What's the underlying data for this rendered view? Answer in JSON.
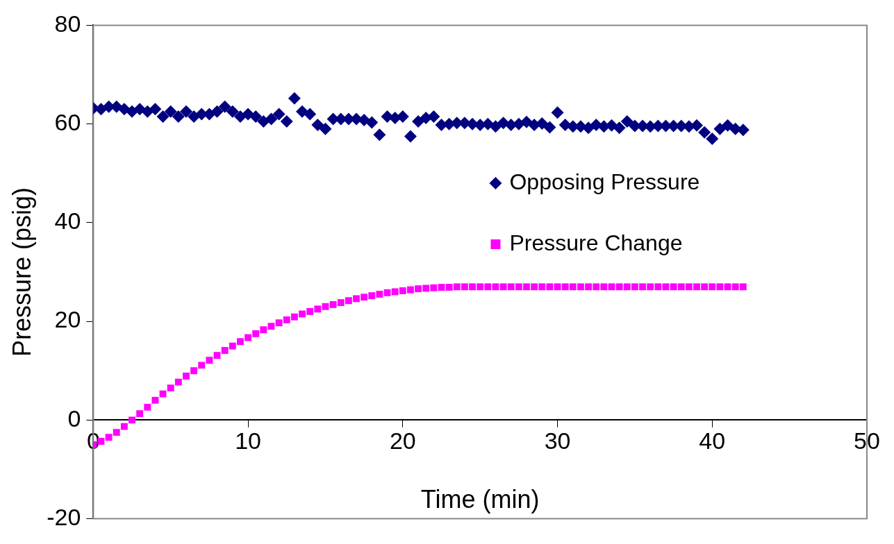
{
  "chart_data": {
    "type": "scatter",
    "xlabel": "Time (min)",
    "ylabel": "Pressure (psig)",
    "x": [
      0,
      0.5,
      1,
      1.5,
      2,
      2.5,
      3,
      3.5,
      4,
      4.5,
      5,
      5.5,
      6,
      6.5,
      7,
      7.5,
      8,
      8.5,
      9,
      9.5,
      10,
      10.5,
      11,
      11.5,
      12,
      12.5,
      13,
      13.5,
      14,
      14.5,
      15,
      15.5,
      16,
      16.5,
      17,
      17.5,
      18,
      18.5,
      19,
      19.5,
      20,
      20.5,
      21,
      21.5,
      22,
      22.5,
      23,
      23.5,
      24,
      24.5,
      25,
      25.5,
      26,
      26.5,
      27,
      27.5,
      28,
      28.5,
      29,
      29.5,
      30,
      30.5,
      31,
      31.5,
      32,
      32.5,
      33,
      33.5,
      34,
      34.5,
      35,
      35.5,
      36,
      36.5,
      37,
      37.5,
      38,
      38.5,
      39,
      39.5,
      40,
      40.5,
      41,
      41.5,
      42
    ],
    "series": [
      {
        "name": "Opposing Pressure",
        "color": "#000080",
        "marker": "diamond",
        "values": [
          63.2,
          63,
          63.5,
          63.5,
          63,
          62.5,
          63,
          62.5,
          63,
          61.5,
          62.5,
          61.5,
          62.5,
          61.5,
          62,
          62,
          62.5,
          63.5,
          62.5,
          61.5,
          62,
          61.5,
          60.5,
          61,
          62,
          60.5,
          65.2,
          62.5,
          62,
          59.8,
          59,
          61,
          61,
          61,
          61,
          60.8,
          60.3,
          57.8,
          61.5,
          61.2,
          61.5,
          57.5,
          60.5,
          61.2,
          61.5,
          59.8,
          60,
          60.2,
          60.2,
          60,
          59.8,
          60,
          59.5,
          60.2,
          59.8,
          60,
          60.4,
          59.8,
          60.1,
          59.3,
          62.3,
          59.8,
          59.5,
          59.5,
          59.2,
          59.8,
          59.5,
          59.7,
          59.2,
          60.5,
          59.6,
          59.6,
          59.5,
          59.6,
          59.6,
          59.6,
          59.6,
          59.5,
          59.7,
          58.3,
          57,
          59,
          59.7,
          59,
          58.8
        ]
      },
      {
        "name": "Pressure Change",
        "color": "#ff00ff",
        "marker": "square",
        "values": [
          -5,
          -4.3,
          -3.5,
          -2.5,
          -1.3,
          0,
          1.3,
          2.6,
          4,
          5.3,
          6.5,
          7.7,
          8.9,
          10,
          11.1,
          12.1,
          13.1,
          14.1,
          15,
          15.9,
          16.7,
          17.5,
          18.3,
          19,
          19.7,
          20.3,
          20.9,
          21.5,
          22,
          22.5,
          23,
          23.4,
          23.8,
          24.2,
          24.6,
          24.9,
          25.2,
          25.5,
          25.8,
          26,
          26.2,
          26.4,
          26.6,
          26.7,
          26.8,
          26.9,
          26.9,
          27,
          27,
          27,
          27,
          27,
          27,
          27,
          27,
          27,
          27,
          27,
          27,
          27,
          27,
          27,
          27,
          27,
          27,
          27,
          27,
          27,
          27,
          27,
          27,
          27,
          27,
          27,
          27,
          27,
          27,
          27,
          27,
          27,
          27,
          27,
          27,
          27,
          27
        ]
      }
    ],
    "xlim": [
      0,
      50
    ],
    "xticks": [
      0,
      10,
      20,
      30,
      40,
      50
    ],
    "ylim": [
      -20,
      80
    ],
    "yticks": [
      -20,
      0,
      20,
      40,
      60,
      80
    ],
    "grid": false,
    "legend": "right"
  }
}
